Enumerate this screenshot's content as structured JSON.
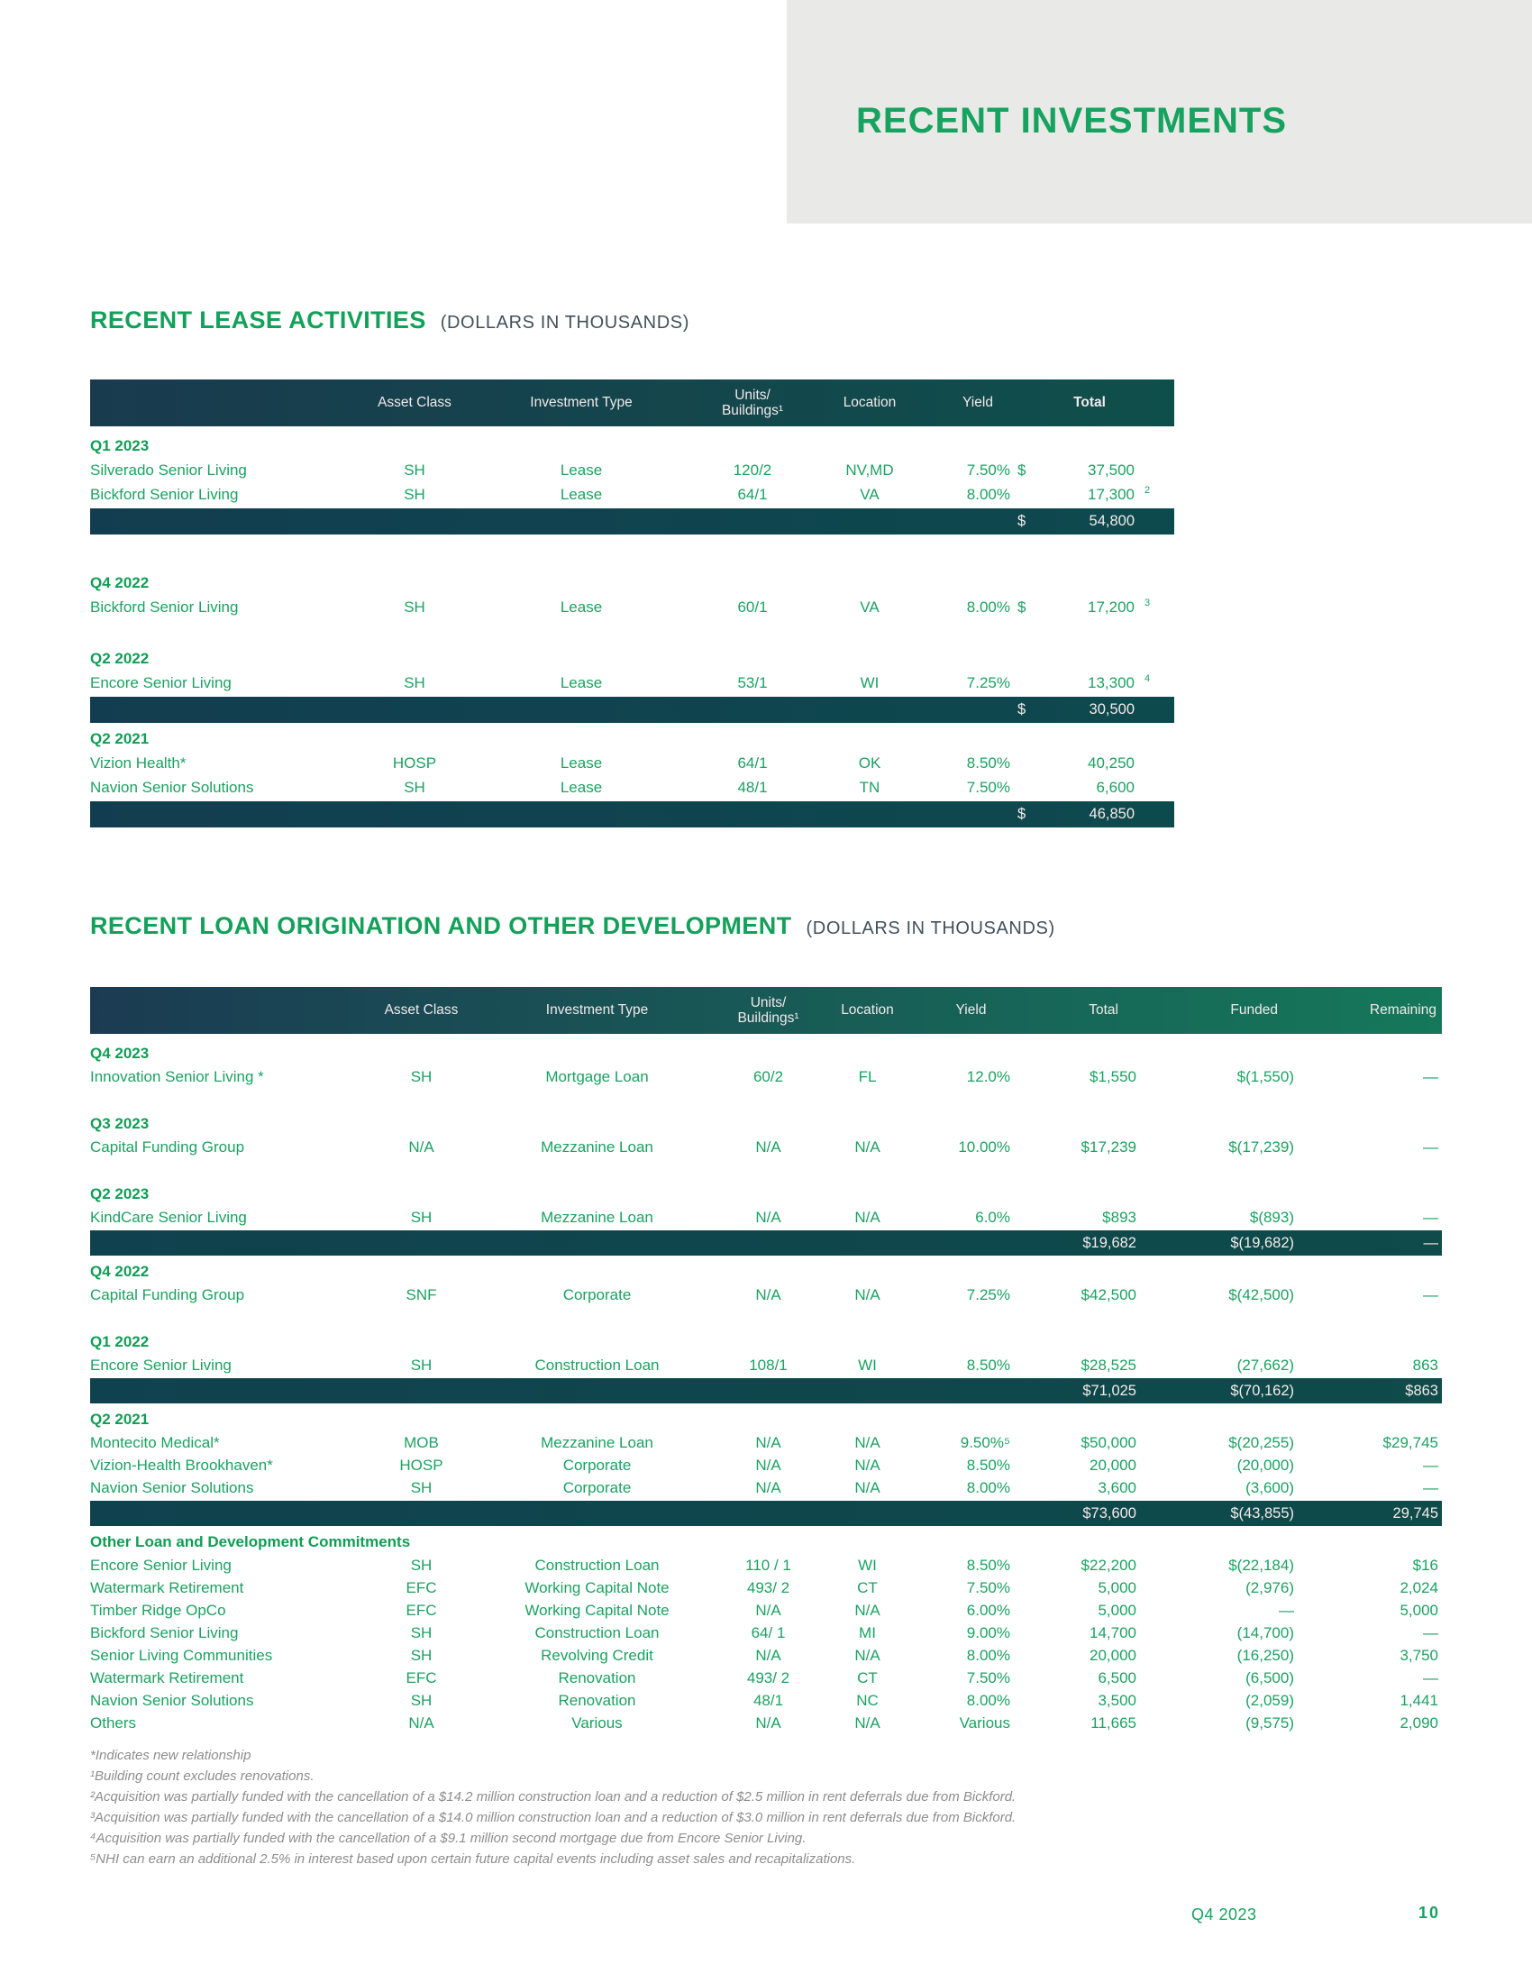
{
  "banner": {
    "title": "RECENT INVESTMENTS"
  },
  "colors": {
    "accent_green": "#17a35f",
    "data_green": "#1ba262",
    "header_navy": "#1b3b52",
    "header_teal": "#0f4f4b",
    "header_green": "#15785a",
    "subtotal_dark": "#0e4b4a",
    "banner_bg": "#e9eae7",
    "subtitle_gray": "#42505a",
    "footnote_gray": "#8d8d8d"
  },
  "lease_table": {
    "title": "RECENT LEASE ACTIVITIES",
    "subtitle": "(DOLLARS IN THOUSANDS)",
    "columns": [
      "",
      "Asset Class",
      "Investment Type",
      "Units/\nBuildings¹",
      "Location",
      "Yield",
      "",
      "Total",
      ""
    ],
    "groups": [
      {
        "label": "Q1 2023",
        "rows": [
          {
            "c": "Silverado Senior Living",
            "a": "SH",
            "t": "Lease",
            "u": "120/2",
            "l": "NV,MD",
            "y": "7.50%",
            "d": "$",
            "v": "37,500",
            "n": ""
          },
          {
            "c": "Bickford Senior Living",
            "a": "SH",
            "t": "Lease",
            "u": "64/1",
            "l": "VA",
            "y": "8.00%",
            "d": "",
            "v": "17,300",
            "n": "2"
          }
        ],
        "subtotal": {
          "d": "$",
          "v": "54,800"
        }
      },
      {
        "label": "Q4 2022",
        "rows": [
          {
            "c": "Bickford Senior Living",
            "a": "SH",
            "t": "Lease",
            "u": "60/1",
            "l": "VA",
            "y": "8.00%",
            "d": "$",
            "v": "17,200",
            "n": "3"
          }
        ],
        "subtotal": null
      },
      {
        "label": "Q2 2022",
        "rows": [
          {
            "c": "Encore Senior Living",
            "a": "SH",
            "t": "Lease",
            "u": "53/1",
            "l": "WI",
            "y": "7.25%",
            "d": "",
            "v": "13,300",
            "n": "4"
          }
        ],
        "subtotal": {
          "d": "$",
          "v": "30,500"
        }
      },
      {
        "label": "Q2 2021",
        "rows": [
          {
            "c": "Vizion Health*",
            "a": "HOSP",
            "t": "Lease",
            "u": "64/1",
            "l": "OK",
            "y": "8.50%",
            "d": "",
            "v": "40,250",
            "n": ""
          },
          {
            "c": "Navion Senior Solutions",
            "a": "SH",
            "t": "Lease",
            "u": "48/1",
            "l": "TN",
            "y": "7.50%",
            "d": "",
            "v": "6,600",
            "n": ""
          }
        ],
        "subtotal": {
          "d": "$",
          "v": "46,850"
        }
      }
    ]
  },
  "loan_table": {
    "title": "RECENT LOAN ORIGINATION AND OTHER DEVELOPMENT",
    "subtitle": "(DOLLARS IN THOUSANDS)",
    "columns": [
      "",
      "Asset Class",
      "Investment Type",
      "Units/\nBuildings¹",
      "Location",
      "Yield",
      "Total",
      "Funded",
      "Remaining"
    ],
    "groups": [
      {
        "label": "Q4 2023",
        "rows": [
          {
            "c": "Innovation Senior Living *",
            "a": "SH",
            "t": "Mortgage Loan",
            "u": "60/2",
            "l": "FL",
            "y": "12.0%",
            "tot": "$1,550",
            "fun": "$(1,550)",
            "rem": "—"
          }
        ],
        "subtotal": null
      },
      {
        "label": "Q3 2023",
        "rows": [
          {
            "c": "Capital Funding Group",
            "a": "N/A",
            "t": "Mezzanine Loan",
            "u": "N/A",
            "l": "N/A",
            "y": "10.00%",
            "tot": "$17,239",
            "fun": "$(17,239)",
            "rem": "—"
          }
        ],
        "subtotal": null
      },
      {
        "label": "Q2 2023",
        "rows": [
          {
            "c": "KindCare Senior Living",
            "a": "SH",
            "t": "Mezzanine Loan",
            "u": "N/A",
            "l": "N/A",
            "y": "6.0%",
            "tot": "$893",
            "fun": "$(893)",
            "rem": "—"
          }
        ],
        "subtotal": {
          "tot": "$19,682",
          "fun": "$(19,682)",
          "rem": "—"
        }
      },
      {
        "label": "Q4 2022",
        "rows": [
          {
            "c": "Capital Funding Group",
            "a": "SNF",
            "t": "Corporate",
            "u": "N/A",
            "l": "N/A",
            "y": "7.25%",
            "tot": "$42,500",
            "fun": "$(42,500)",
            "rem": "—"
          }
        ],
        "subtotal": null
      },
      {
        "label": "Q1 2022",
        "rows": [
          {
            "c": "Encore Senior Living",
            "a": "SH",
            "t": "Construction Loan",
            "u": "108/1",
            "l": "WI",
            "y": "8.50%",
            "tot": "$28,525",
            "fun": "(27,662)",
            "rem": "863"
          }
        ],
        "subtotal": {
          "tot": "$71,025",
          "fun": "$(70,162)",
          "rem": "$863"
        }
      },
      {
        "label": "Q2 2021",
        "rows": [
          {
            "c": "Montecito Medical*",
            "a": "MOB",
            "t": "Mezzanine Loan",
            "u": "N/A",
            "l": "N/A",
            "y": "9.50%⁵",
            "tot": "$50,000",
            "fun": "$(20,255)",
            "rem": "$29,745"
          },
          {
            "c": "Vizion-Health Brookhaven*",
            "a": "HOSP",
            "t": "Corporate",
            "u": "N/A",
            "l": "N/A",
            "y": "8.50%",
            "tot": "20,000",
            "fun": "(20,000)",
            "rem": "—"
          },
          {
            "c": "Navion Senior Solutions",
            "a": "SH",
            "t": "Corporate",
            "u": "N/A",
            "l": "N/A",
            "y": "8.00%",
            "tot": "3,600",
            "fun": "(3,600)",
            "rem": "—"
          }
        ],
        "subtotal": {
          "tot": "$73,600",
          "fun": "$(43,855)",
          "rem": "29,745"
        }
      },
      {
        "label": "Other Loan and Development Commitments",
        "rows": [
          {
            "c": "Encore Senior Living",
            "a": "SH",
            "t": "Construction Loan",
            "u": "110 / 1",
            "l": "WI",
            "y": "8.50%",
            "tot": "$22,200",
            "fun": "$(22,184)",
            "rem": "$16"
          },
          {
            "c": "Watermark Retirement",
            "a": "EFC",
            "t": "Working Capital Note",
            "u": "493/ 2",
            "l": "CT",
            "y": "7.50%",
            "tot": "5,000",
            "fun": "(2,976)",
            "rem": "2,024"
          },
          {
            "c": "Timber Ridge OpCo",
            "a": "EFC",
            "t": "Working Capital Note",
            "u": "N/A",
            "l": "N/A",
            "y": "6.00%",
            "tot": "5,000",
            "fun": "—",
            "rem": "5,000"
          },
          {
            "c": "Bickford Senior Living",
            "a": "SH",
            "t": "Construction Loan",
            "u": "64/ 1",
            "l": "MI",
            "y": "9.00%",
            "tot": "14,700",
            "fun": "(14,700)",
            "rem": "—"
          },
          {
            "c": "Senior Living Communities",
            "a": "SH",
            "t": "Revolving Credit",
            "u": "N/A",
            "l": "N/A",
            "y": "8.00%",
            "tot": "20,000",
            "fun": "(16,250)",
            "rem": "3,750"
          },
          {
            "c": "Watermark Retirement",
            "a": "EFC",
            "t": "Renovation",
            "u": "493/ 2",
            "l": "CT",
            "y": "7.50%",
            "tot": "6,500",
            "fun": "(6,500)",
            "rem": "—"
          },
          {
            "c": "Navion Senior Solutions",
            "a": "SH",
            "t": "Renovation",
            "u": "48/1",
            "l": "NC",
            "y": "8.00%",
            "tot": "3,500",
            "fun": "(2,059)",
            "rem": "1,441"
          },
          {
            "c": "Others",
            "a": "N/A",
            "t": "Various",
            "u": "N/A",
            "l": "N/A",
            "y": "Various",
            "tot": "11,665",
            "fun": "(9,575)",
            "rem": "2,090"
          }
        ],
        "subtotal": null
      }
    ]
  },
  "footnotes": [
    "*Indicates new relationship",
    "¹Building count excludes renovations.",
    "²Acquisition was partially funded with the cancellation of a $14.2 million construction loan and a reduction of $2.5 million in rent deferrals due from Bickford.",
    "³Acquisition was partially funded with the cancellation of a $14.0 million construction loan and a reduction of $3.0 million in rent deferrals due from Bickford.",
    "⁴Acquisition was partially funded with the cancellation of a $9.1 million second mortgage due from Encore Senior Living.",
    "⁵NHI can earn an additional 2.5% in interest based upon certain future capital events including asset sales and recapitalizations."
  ],
  "footer": {
    "period": "Q4 2023",
    "page": "10"
  }
}
